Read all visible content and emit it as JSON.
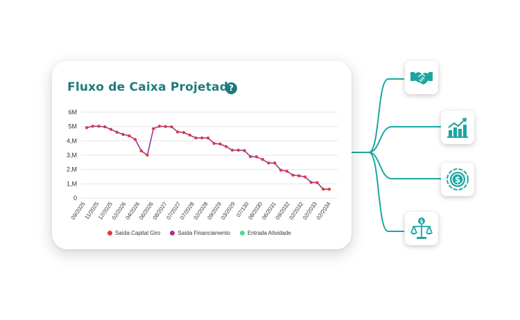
{
  "card": {
    "title": "Fluxo de Caixa Projetado",
    "help_symbol": "?"
  },
  "chart_data": {
    "type": "line",
    "ylim": [
      0,
      6
    ],
    "y_ticks": [
      "6M",
      "5M",
      "4,M",
      "3,M",
      "2,M",
      "1,M",
      "0"
    ],
    "x_ticks": [
      "09/2025",
      "11/2025",
      "12/2025",
      "02/2026",
      "04/2026",
      "06/2026",
      "08/2027",
      "07/2027",
      "07/2028",
      "02/2028",
      "09/2029",
      "03/2029",
      "07/130",
      "08/2030",
      "06/2031",
      "09/2032",
      "02/2032",
      "02/2033",
      "02/2034"
    ],
    "series": [
      {
        "name": "Saída Capital Giro",
        "color": "#e53935"
      },
      {
        "name": "Saída Financiamento",
        "color": "#b02a8a"
      },
      {
        "name": "Entrada Atividade",
        "color": "#4cd98a"
      }
    ],
    "values": [
      4.92,
      5.02,
      5.02,
      4.98,
      4.8,
      4.6,
      4.45,
      4.35,
      4.1,
      3.3,
      3.0,
      4.85,
      5.02,
      5.0,
      4.98,
      4.62,
      4.58,
      4.4,
      4.2,
      4.2,
      4.2,
      3.82,
      3.78,
      3.6,
      3.35,
      3.35,
      3.32,
      2.9,
      2.88,
      2.7,
      2.45,
      2.45,
      1.95,
      1.88,
      1.6,
      1.56,
      1.48,
      1.1,
      1.08,
      0.62,
      0.62
    ]
  },
  "colors": {
    "accent": "#1f7a7c",
    "teal": "#1aa6a2"
  },
  "side_icons": [
    "handshake-icon",
    "growth-chart-icon",
    "dollar-coin-icon",
    "balance-scale-icon"
  ]
}
